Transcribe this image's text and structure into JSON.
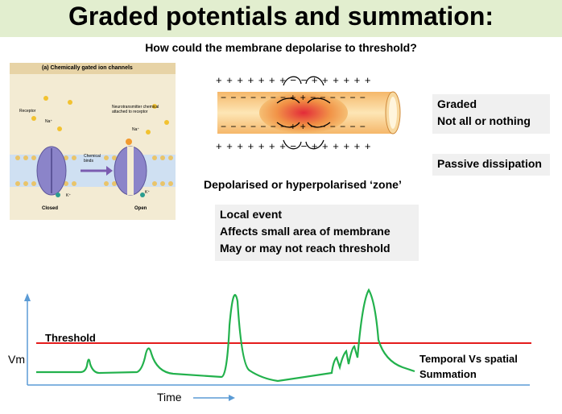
{
  "title": "Graded potentials and summation:",
  "subtitle": "How could the membrane depolarise to threshold?",
  "figure_a": {
    "heading": "(a)  Chemically gated ion channels",
    "receptor": "Receptor",
    "na": "Na⁺",
    "k": "K⁺",
    "neurotransmitter": "Neurotransmitter chemical attached to receptor",
    "chemical_binds": "Chemical binds",
    "closed": "Closed",
    "open": "Open"
  },
  "axon": {
    "top_charges": "+ + + + + + + − − + + + + + +",
    "inner_top": "− − − − − − − + + − − − − − −",
    "inner_bottom": "− − − − − − − + + − − − − − −",
    "bottom_charges": "+ + + + + + + − − + + + + + +"
  },
  "zone_label": "Depolarised or hyperpolarised ‘zone’",
  "graded_box": [
    "Graded",
    "Not all or nothing"
  ],
  "passive_box": "Passive dissipation",
  "local_box": [
    "Local event",
    "Affects small area of membrane",
    "May or may not reach threshold"
  ],
  "graph": {
    "threshold_label": "Threshold",
    "vm_label": "Vm",
    "time_label": "Time",
    "summation_label": [
      "Temporal Vs spatial",
      "Summation"
    ]
  },
  "colors": {
    "title_bg": "#e2eecf",
    "threshold": "#e41c1c",
    "trace": "#22b14c",
    "axis": "#5b9bd5"
  }
}
